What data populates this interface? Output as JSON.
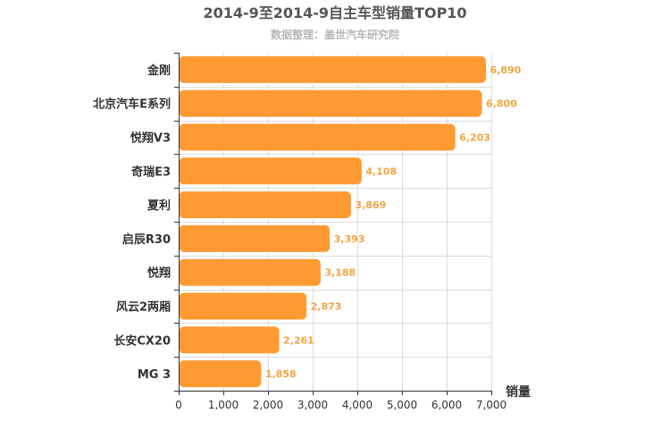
{
  "chart_data": {
    "type": "bar",
    "orientation": "horizontal",
    "title": "2014-9至2014-9自主车型销量TOP10",
    "subtitle": "数据整理：盖世汽车研究院",
    "xlabel": "销量",
    "ylabel": "",
    "categories": [
      "金刚",
      "北京汽车E系列",
      "悦翔V3",
      "奇瑞E3",
      "夏利",
      "启辰R30",
      "悦翔",
      "风云2两厢",
      "长安CX20",
      "MG 3"
    ],
    "values": [
      6890,
      6800,
      6203,
      4108,
      3869,
      3393,
      3188,
      2873,
      2261,
      1858
    ],
    "value_labels": [
      "6,890",
      "6,800",
      "6,203",
      "4,108",
      "3,869",
      "3,393",
      "3,188",
      "2,873",
      "2,261",
      "1,858"
    ],
    "xlim": [
      0,
      7000
    ],
    "xticks": [
      0,
      1000,
      2000,
      3000,
      4000,
      5000,
      6000,
      7000
    ],
    "xtick_labels": [
      "0",
      "1,000",
      "2,000",
      "3,000",
      "4,000",
      "5,000",
      "6,000",
      "7,000"
    ],
    "grid": true,
    "legend": "none",
    "colors": {
      "bar": "#ff9a33",
      "bar_stroke": "#ffffff",
      "value_label": "#f5a343",
      "grid": "#dcdcdc",
      "axis": "#333333"
    }
  }
}
